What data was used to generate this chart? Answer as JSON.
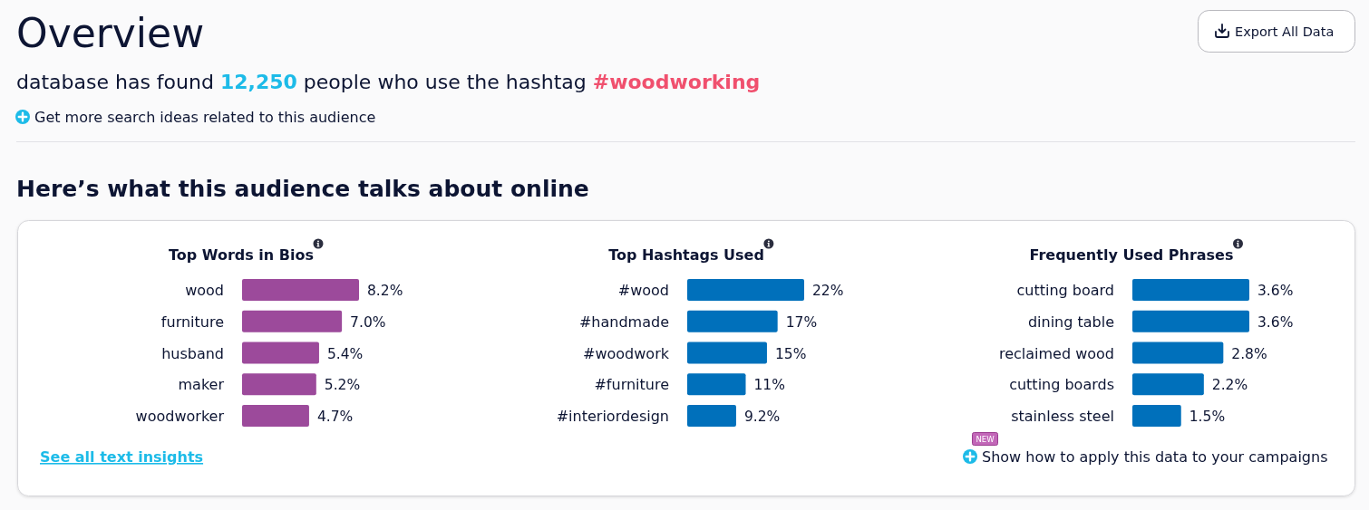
{
  "chart_data": [
    {
      "type": "other",
      "title": "Overview",
      "subtitle": "database has found 12,250 people who use the hashtag #woodworking",
      "annotations": [
        "Get more search ideas related to this audience",
        "Here’s what this audience talks about online",
        "Export All Data"
      ]
    },
    {
      "type": "bar",
      "orientation": "horizontal",
      "title": "Top Words in Bios",
      "categories": [
        "wood",
        "furniture",
        "husband",
        "maker",
        "woodworker"
      ],
      "values": [
        8.2,
        7.0,
        5.4,
        5.2,
        4.7
      ],
      "value_labels": [
        "8.2%",
        "7.0%",
        "5.4%",
        "5.2%",
        "4.7%"
      ],
      "color": "#9c4a9b"
    },
    {
      "type": "bar",
      "orientation": "horizontal",
      "title": "Top Hashtags Used",
      "categories": [
        "#wood",
        "#handmade",
        "#woodwork",
        "#furniture",
        "#interiordesign"
      ],
      "values": [
        22,
        17,
        15,
        11,
        9.2
      ],
      "value_labels": [
        "22%",
        "17%",
        "15%",
        "11%",
        "9.2%"
      ],
      "color": "#0070bb"
    },
    {
      "type": "bar",
      "orientation": "horizontal",
      "title": "Frequently Used Phrases",
      "categories": [
        "cutting board",
        "dining table",
        "reclaimed wood",
        "cutting boards",
        "stainless steel"
      ],
      "values": [
        3.6,
        3.6,
        2.8,
        2.2,
        1.5
      ],
      "value_labels": [
        "3.6%",
        "3.6%",
        "2.8%",
        "2.2%",
        "1.5%"
      ],
      "color": "#0070bb"
    },
    {
      "type": "other",
      "annotations": [
        "See all text insights",
        "NEW",
        "Show how to apply this data to your campaigns"
      ]
    }
  ]
}
